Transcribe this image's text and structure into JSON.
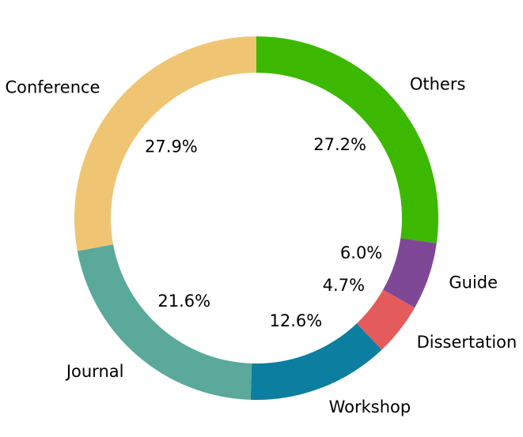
{
  "chart_data": {
    "type": "pie",
    "variant": "donut",
    "categories": [
      "Others",
      "Guide",
      "Dissertation",
      "Workshop",
      "Journal",
      "Conference"
    ],
    "values": [
      27.2,
      6.0,
      4.7,
      12.6,
      21.6,
      27.9
    ],
    "percent_labels": [
      "27.2%",
      "6.0%",
      "4.7%",
      "12.6%",
      "21.6%",
      "27.9%"
    ],
    "colors": [
      "#3cb800",
      "#7e4896",
      "#e35b5c",
      "#0c7ea0",
      "#5aa99a",
      "#efc573"
    ],
    "start_angle": "12 o'clock",
    "direction": "clockwise",
    "legend": "none"
  }
}
